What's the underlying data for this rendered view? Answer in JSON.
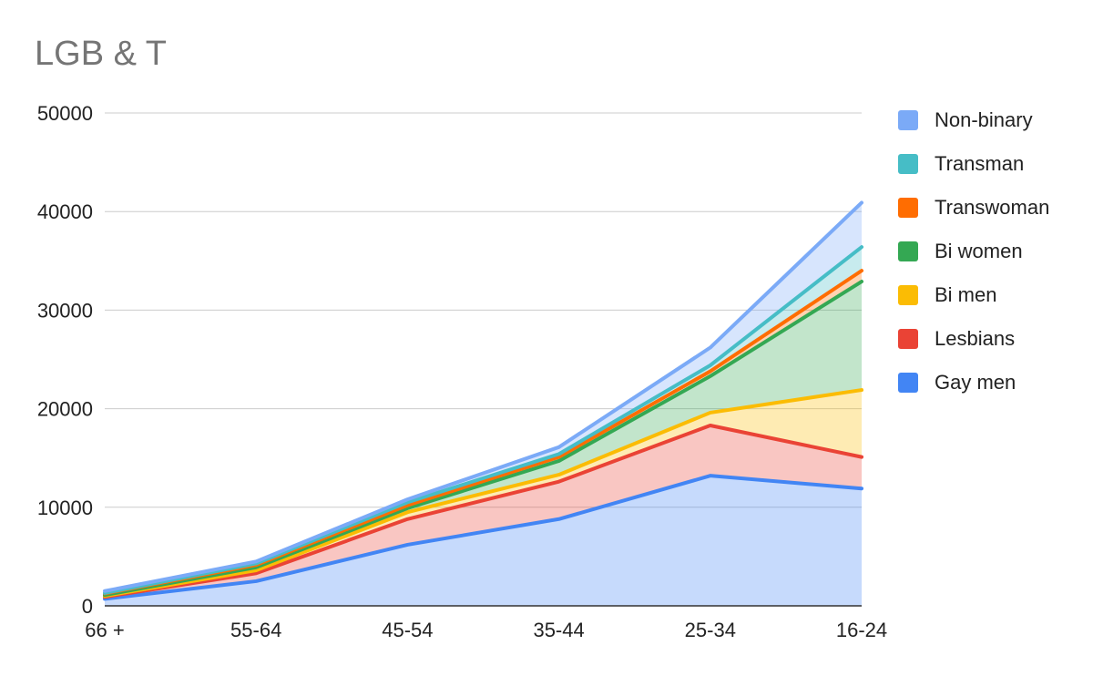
{
  "chart_data": {
    "type": "area",
    "stacked": true,
    "title": "LGB & T",
    "xlabel": "",
    "ylabel": "",
    "categories": [
      "66 +",
      "55-64",
      "45-54",
      "35-44",
      "25-34",
      "16-24"
    ],
    "ylim": [
      0,
      50000
    ],
    "yticks": [
      0,
      10000,
      20000,
      30000,
      40000,
      50000
    ],
    "grid": true,
    "legend_position": "right",
    "series": [
      {
        "name": "Gay men",
        "color": "#4285f4",
        "values": [
          700,
          2500,
          6200,
          8800,
          13200,
          11900
        ]
      },
      {
        "name": "Lesbians",
        "color": "#ea4335",
        "values": [
          200,
          800,
          2600,
          3800,
          5100,
          3200
        ]
      },
      {
        "name": "Bi men",
        "color": "#fbbc04",
        "values": [
          100,
          300,
          700,
          700,
          1300,
          6800
        ]
      },
      {
        "name": "Bi women",
        "color": "#34a853",
        "values": [
          100,
          300,
          400,
          1400,
          3700,
          11000
        ]
      },
      {
        "name": "Transwoman",
        "color": "#ff6d01",
        "values": [
          150,
          250,
          300,
          400,
          500,
          1100
        ]
      },
      {
        "name": "Transman",
        "color": "#46bdc6",
        "values": [
          50,
          150,
          300,
          300,
          600,
          2400
        ]
      },
      {
        "name": "Non-binary",
        "color": "#7baaf7",
        "values": [
          200,
          200,
          300,
          700,
          1800,
          4500
        ]
      }
    ]
  }
}
